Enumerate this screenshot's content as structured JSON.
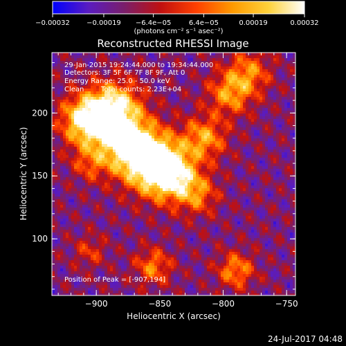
{
  "chart_data": {
    "type": "heatmap",
    "title": "Reconstructed RHESSI Image",
    "xlabel": "Heliocentric X (arcsec)",
    "ylabel": "Heliocentric Y (arcsec)",
    "xlim": [
      -935,
      -743
    ],
    "ylim": [
      55,
      248
    ],
    "x_ticks": [
      -900,
      -850,
      -800,
      -750
    ],
    "x_tick_labels": [
      "−900",
      "−850",
      "−800",
      "−750"
    ],
    "y_ticks": [
      100,
      150,
      200
    ],
    "y_tick_labels": [
      "100",
      "150",
      "200"
    ],
    "colorbar": {
      "range": [
        -0.00032,
        0.00032
      ],
      "ticks": [
        -0.00032,
        -0.00019,
        -6.4e-05,
        6.4e-05,
        0.00019,
        0.00032
      ],
      "tick_labels": [
        "−0.00032",
        "−0.00019",
        "−6.4e−05",
        "6.4e−05",
        "0.00019",
        "0.00032"
      ],
      "unit_label": "(photons cm⁻² s⁻¹ asec⁻²)",
      "colors": [
        "#0000ff",
        "#5a1cc0",
        "#7a1e6a",
        "#c01010",
        "#ff4000",
        "#ff9a00",
        "#ffd23a",
        "#ffffff"
      ]
    },
    "annotations": [
      "29-Jan-2015 19:24:44.000 to 19:34:44.000",
      "Detectors: 3F 5F 6F 7F 8F 9F, Att 0",
      "Energy Range: 25.0 - 50.0 keV",
      "Clean",
      "Total counts: 2.23E+04",
      "Position of Peak = [-907,194]"
    ],
    "peak": {
      "x": -907,
      "y": 194
    }
  },
  "footer": {
    "timestamp": "24-Jul-2017 04:48"
  }
}
